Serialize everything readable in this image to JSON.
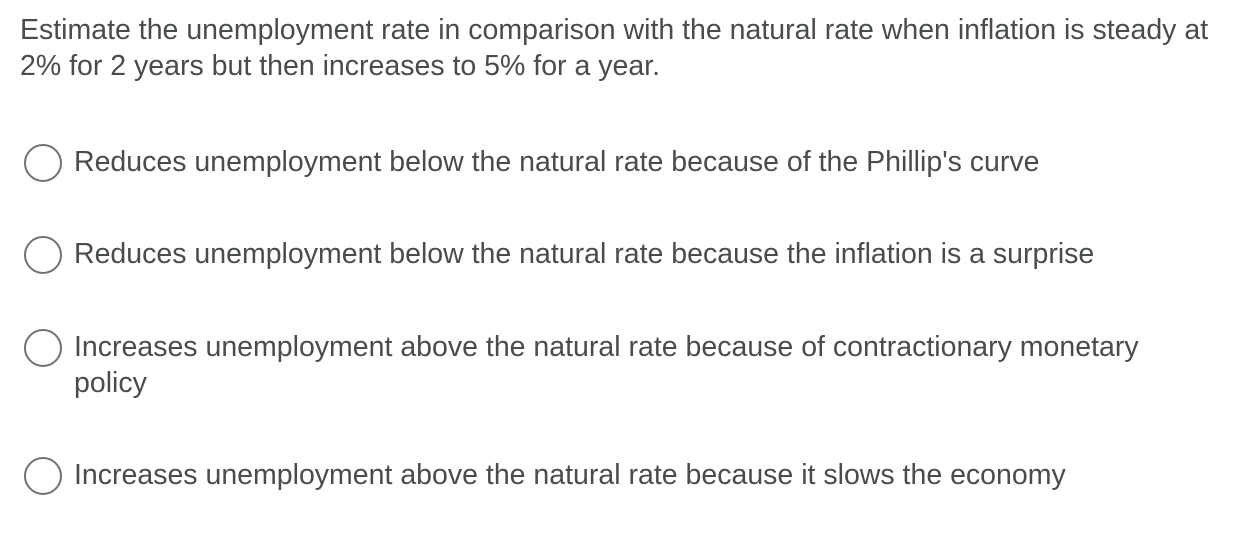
{
  "question": {
    "text": "Estimate the unemployment rate in comparison with the natural rate when inflation is steady at 2% for 2 years but then increases to 5% for a year."
  },
  "options": [
    {
      "label": "Reduces unemployment below the natural rate because of the Phillip's curve",
      "selected": false
    },
    {
      "label": "Reduces unemployment below the natural rate because the inflation is a surprise",
      "selected": false
    },
    {
      "label": "Increases unemployment above the natural rate because of contractionary monetary policy",
      "selected": false
    },
    {
      "label": "Increases unemployment above the natural rate because it slows the economy",
      "selected": false
    }
  ]
}
